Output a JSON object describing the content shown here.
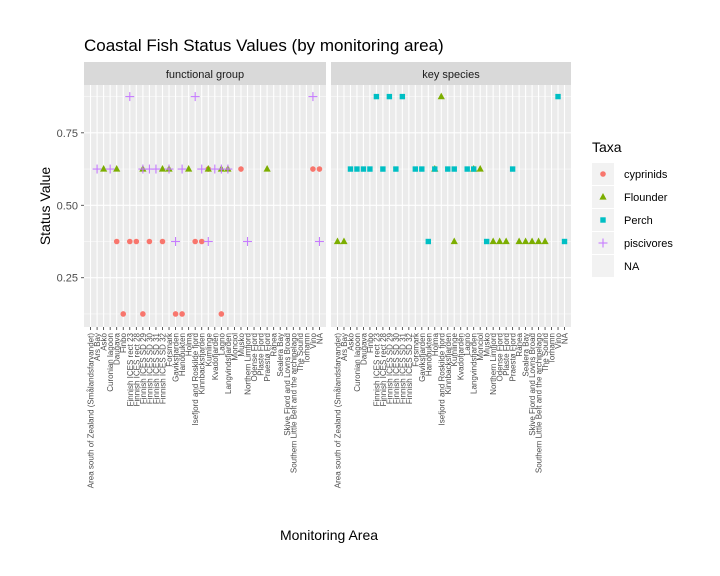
{
  "chart_data": {
    "type": "scatter",
    "title": "Coastal Fish Status Values (by monitoring area)",
    "xlabel": "Monitoring Area",
    "ylabel": "Status Value",
    "ylim": [
      0.08,
      0.915
    ],
    "yticks": [
      0.25,
      0.5,
      0.75
    ],
    "ytick_labels": [
      "0.25",
      "0.50",
      "0.75"
    ],
    "grid": true,
    "legend_position": "right",
    "legend_title": "Taxa",
    "categories": [
      "Area south of Zealand (Smålandsfarvandet)",
      "Ars Bay",
      "Asko",
      "Curonian lagoon",
      "Daugava",
      "Finbo",
      "Finnish ICES rect 23",
      "Finnish ICES rect 28",
      "Finnish ICES SD 29",
      "Finnish ICES SD 30",
      "Finnish ICES SD 31",
      "Finnish ICES SD 32",
      "Forsmark",
      "Gaviksfjarden",
      "Hanöbukten",
      "Holma",
      "Isefjord and Roskilde fjord",
      "Kinnbacksfjarden",
      "Kumlinge",
      "Kvadofjarden",
      "Lagnö",
      "Langvindsfjarden",
      "Monciol",
      "Musko",
      "Northern Limfjord",
      "Odense Fjord",
      "Plaste Fjord",
      "Praestø Fjord",
      "Rånea",
      "Sealera Bay",
      "Skive Fjord and Lovns Broad",
      "Southern Little Belt and the archipelago",
      "The Sound",
      "Torhamn",
      "Vino",
      "NA"
    ],
    "facets": [
      "functional group",
      "key species"
    ],
    "series": [
      {
        "name": "cyprinids",
        "color": "#F8766D",
        "marker": "circle",
        "points": [
          {
            "facet": "functional group",
            "x": "Daugava",
            "y": 0.375
          },
          {
            "facet": "functional group",
            "x": "Finbo",
            "y": 0.125
          },
          {
            "facet": "functional group",
            "x": "Finnish ICES rect 23",
            "y": 0.375
          },
          {
            "facet": "functional group",
            "x": "Finnish ICES rect 28",
            "y": 0.375
          },
          {
            "facet": "functional group",
            "x": "Finnish ICES SD 29",
            "y": 0.125
          },
          {
            "facet": "functional group",
            "x": "Finnish ICES SD 30",
            "y": 0.375
          },
          {
            "facet": "functional group",
            "x": "Finnish ICES SD 32",
            "y": 0.375
          },
          {
            "facet": "functional group",
            "x": "Gaviksfjarden",
            "y": 0.125
          },
          {
            "facet": "functional group",
            "x": "Hanöbukten",
            "y": 0.125
          },
          {
            "facet": "functional group",
            "x": "Isefjord and Roskilde fjord",
            "y": 0.375
          },
          {
            "facet": "functional group",
            "x": "Kinnbacksfjarden",
            "y": 0.375
          },
          {
            "facet": "functional group",
            "x": "Kumlinge",
            "y": 0.625
          },
          {
            "facet": "functional group",
            "x": "Lagnö",
            "y": 0.125
          },
          {
            "facet": "functional group",
            "x": "Musko",
            "y": 0.625
          },
          {
            "facet": "functional group",
            "x": "Vino",
            "y": 0.625
          },
          {
            "facet": "functional group",
            "x": "NA",
            "y": 0.625
          }
        ]
      },
      {
        "name": "Flounder",
        "color": "#7CAE00",
        "marker": "triangle",
        "points": [
          {
            "facet": "functional group",
            "x": "Asko",
            "y": 0.625
          },
          {
            "facet": "functional group",
            "x": "Daugava",
            "y": 0.625
          },
          {
            "facet": "functional group",
            "x": "Finnish ICES SD 29",
            "y": 0.625
          },
          {
            "facet": "functional group",
            "x": "Finnish ICES SD 32",
            "y": 0.625
          },
          {
            "facet": "functional group",
            "x": "Forsmark",
            "y": 0.625
          },
          {
            "facet": "functional group",
            "x": "Holma",
            "y": 0.625
          },
          {
            "facet": "functional group",
            "x": "Kumlinge",
            "y": 0.625
          },
          {
            "facet": "functional group",
            "x": "Lagnö",
            "y": 0.625
          },
          {
            "facet": "functional group",
            "x": "Langvindsfjarden",
            "y": 0.625
          },
          {
            "facet": "functional group",
            "x": "Praestø Fjord",
            "y": 0.625
          },
          {
            "facet": "key species",
            "x": "Area south of Zealand (Smålandsfarvandet)",
            "y": 0.375
          },
          {
            "facet": "key species",
            "x": "Ars Bay",
            "y": 0.375
          },
          {
            "facet": "key species",
            "x": "Holma",
            "y": 0.625
          },
          {
            "facet": "key species",
            "x": "Isefjord and Roskilde fjord",
            "y": 0.875
          },
          {
            "facet": "key species",
            "x": "Kumlinge",
            "y": 0.375
          },
          {
            "facet": "key species",
            "x": "Langvindsfjarden",
            "y": 0.625
          },
          {
            "facet": "key species",
            "x": "Monciol",
            "y": 0.625
          },
          {
            "facet": "key species",
            "x": "Northern Limfjord",
            "y": 0.375
          },
          {
            "facet": "key species",
            "x": "Odense Fjord",
            "y": 0.375
          },
          {
            "facet": "key species",
            "x": "Plaste Fjord",
            "y": 0.375
          },
          {
            "facet": "key species",
            "x": "Rånea",
            "y": 0.375
          },
          {
            "facet": "key species",
            "x": "Sealera Bay",
            "y": 0.375
          },
          {
            "facet": "key species",
            "x": "Skive Fjord and Lovns Broad",
            "y": 0.375
          },
          {
            "facet": "key species",
            "x": "Southern Little Belt and the archipelago",
            "y": 0.375
          },
          {
            "facet": "key species",
            "x": "The Sound",
            "y": 0.375
          }
        ]
      },
      {
        "name": "Perch",
        "color": "#00BFC4",
        "marker": "square",
        "points": [
          {
            "facet": "key species",
            "x": "Asko",
            "y": 0.625
          },
          {
            "facet": "key species",
            "x": "Curonian lagoon",
            "y": 0.625
          },
          {
            "facet": "key species",
            "x": "Daugava",
            "y": 0.625
          },
          {
            "facet": "key species",
            "x": "Finbo",
            "y": 0.625
          },
          {
            "facet": "key species",
            "x": "Finnish ICES rect 23",
            "y": 0.875
          },
          {
            "facet": "key species",
            "x": "Finnish ICES rect 28",
            "y": 0.625
          },
          {
            "facet": "key species",
            "x": "Finnish ICES SD 29",
            "y": 0.875
          },
          {
            "facet": "key species",
            "x": "Finnish ICES SD 30",
            "y": 0.625
          },
          {
            "facet": "key species",
            "x": "Finnish ICES SD 31",
            "y": 0.875
          },
          {
            "facet": "key species",
            "x": "Forsmark",
            "y": 0.625
          },
          {
            "facet": "key species",
            "x": "Gaviksfjarden",
            "y": 0.625
          },
          {
            "facet": "key species",
            "x": "Hanöbukten",
            "y": 0.375
          },
          {
            "facet": "key species",
            "x": "Holma",
            "y": 0.625
          },
          {
            "facet": "key species",
            "x": "Kinnbacksfjarden",
            "y": 0.625
          },
          {
            "facet": "key species",
            "x": "Kumlinge",
            "y": 0.625
          },
          {
            "facet": "key species",
            "x": "Lagnö",
            "y": 0.625
          },
          {
            "facet": "key species",
            "x": "Langvindsfjarden",
            "y": 0.625
          },
          {
            "facet": "key species",
            "x": "Musko",
            "y": 0.375
          },
          {
            "facet": "key species",
            "x": "Praestø Fjord",
            "y": 0.625
          },
          {
            "facet": "key species",
            "x": "Vino",
            "y": 0.875
          },
          {
            "facet": "key species",
            "x": "NA",
            "y": 0.375
          }
        ]
      },
      {
        "name": "piscivores",
        "color": "#C77CFF",
        "marker": "plus",
        "points": [
          {
            "facet": "functional group",
            "x": "Ars Bay",
            "y": 0.625
          },
          {
            "facet": "functional group",
            "x": "Curonian lagoon",
            "y": 0.625
          },
          {
            "facet": "functional group",
            "x": "Finnish ICES rect 23",
            "y": 0.875
          },
          {
            "facet": "functional group",
            "x": "Finnish ICES SD 29",
            "y": 0.625
          },
          {
            "facet": "functional group",
            "x": "Finnish ICES SD 30",
            "y": 0.625
          },
          {
            "facet": "functional group",
            "x": "Finnish ICES SD 31",
            "y": 0.625
          },
          {
            "facet": "functional group",
            "x": "Forsmark",
            "y": 0.625
          },
          {
            "facet": "functional group",
            "x": "Gaviksfjarden",
            "y": 0.375
          },
          {
            "facet": "functional group",
            "x": "Hanöbukten",
            "y": 0.625
          },
          {
            "facet": "functional group",
            "x": "Isefjord and Roskilde fjord",
            "y": 0.875
          },
          {
            "facet": "functional group",
            "x": "Kinnbacksfjarden",
            "y": 0.625
          },
          {
            "facet": "functional group",
            "x": "Kumlinge",
            "y": 0.375
          },
          {
            "facet": "functional group",
            "x": "Kvadofjarden",
            "y": 0.625
          },
          {
            "facet": "functional group",
            "x": "Lagnö",
            "y": 0.625
          },
          {
            "facet": "functional group",
            "x": "Langvindsfjarden",
            "y": 0.625
          },
          {
            "facet": "functional group",
            "x": "Northern Limfjord",
            "y": 0.375
          },
          {
            "facet": "functional group",
            "x": "Vino",
            "y": 0.875
          },
          {
            "facet": "functional group",
            "x": "NA",
            "y": 0.375
          }
        ]
      },
      {
        "name": "NA",
        "color": "#7F7F7F",
        "marker": "none",
        "points": []
      }
    ]
  }
}
